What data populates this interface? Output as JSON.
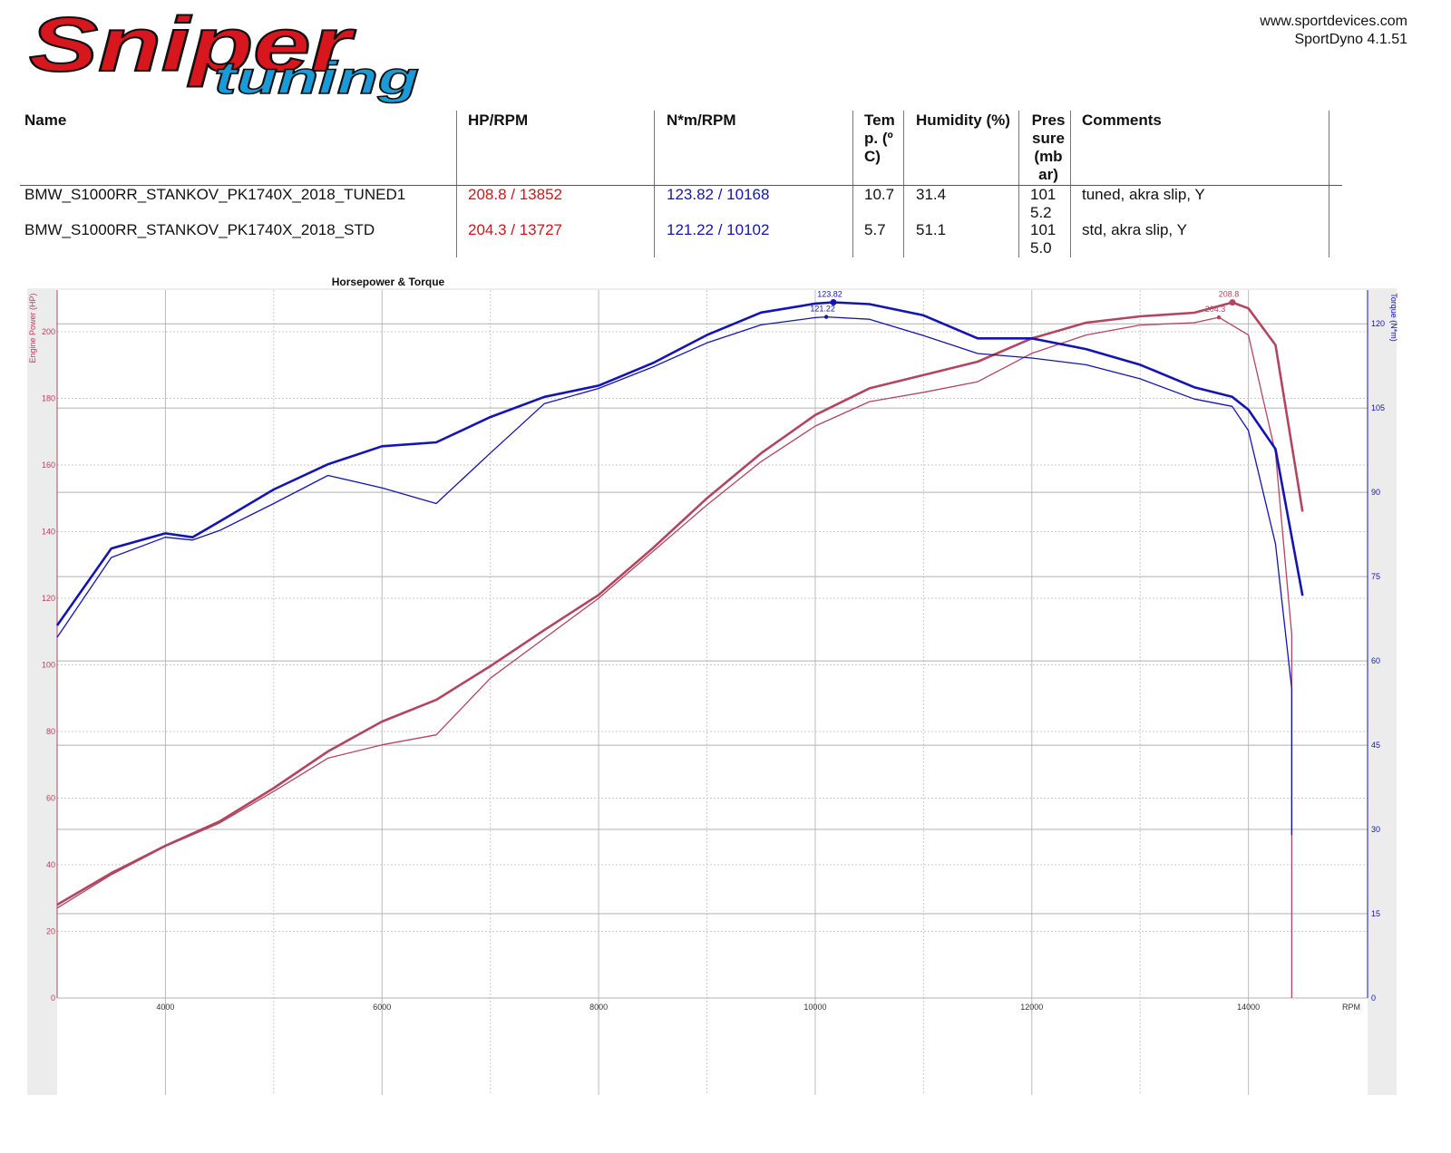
{
  "header": {
    "logo": {
      "brand": "Sniper",
      "sub": "tuning"
    },
    "site": "www.sportdevices.com",
    "software": "SportDyno 4.1.51"
  },
  "table": {
    "columns": [
      "Name",
      "HP/RPM",
      "N*m/RPM",
      "Temp. (ºC)",
      "Humidity (%)",
      "Pressure (mbar)",
      "Comments"
    ],
    "rows": [
      [
        "BMW_S1000RR_STANKOV_PK1740X_2018_TUNED1",
        "208.8 / 13852",
        "123.82 / 10168",
        "10.7",
        "31.4",
        "1015.2",
        "tuned, akra slip, Y"
      ],
      [
        "BMW_S1000RR_STANKOV_PK1740X_2018_STD",
        "204.3 / 13727",
        "121.22 / 10102",
        "5.7",
        "51.1",
        "1015.0",
        "std, akra slip, Y"
      ]
    ]
  },
  "chart_data": {
    "type": "line",
    "title": "Horsepower & Torque",
    "x_label": "RPM",
    "y_label": "Engine Power (HP)",
    "y2_label": "Torque (N*m)",
    "xlim": [
      3000,
      15100
    ],
    "xticks": [
      4000,
      6000,
      8000,
      10000,
      12000,
      14000
    ],
    "ylim": [
      0,
      212.5
    ],
    "yticks": [
      0,
      20,
      40,
      60,
      80,
      100,
      120,
      140,
      160,
      180,
      200
    ],
    "y2lim": [
      0,
      126
    ],
    "y2ticks": [
      0,
      15,
      30,
      45,
      60,
      75,
      90,
      105,
      120
    ],
    "grid": true,
    "series": [
      {
        "color": "#b24560",
        "x": [
          3000,
          3500,
          4000,
          4500,
          5000,
          5500,
          6000,
          6500,
          7000,
          7500,
          8000,
          8500,
          9000,
          9500,
          10000,
          10500,
          11000,
          11500,
          12000,
          12500,
          13000,
          13500,
          13852,
          14000,
          14250,
          14500
        ],
        "values": [
          28,
          37.5,
          45.7,
          53,
          63,
          74,
          83,
          89.5,
          99.6,
          110.5,
          121,
          135,
          150,
          163.5,
          175,
          183,
          187,
          191,
          198,
          202.7,
          204.6,
          205.7,
          208.8,
          207,
          196,
          146
        ]
      },
      {
        "color": "#b24560",
        "x": [
          3000,
          3500,
          4000,
          4500,
          5000,
          5500,
          6000,
          6500,
          7000,
          7500,
          8000,
          8500,
          9000,
          9500,
          10000,
          10500,
          11000,
          11500,
          12000,
          12500,
          13000,
          13500,
          13727,
          14000,
          14250,
          14400,
          14400
        ],
        "values": [
          27,
          37,
          45.5,
          52.5,
          62,
          72,
          76,
          79,
          96,
          108,
          120,
          134,
          148,
          161,
          171.7,
          179,
          181.8,
          185,
          193.5,
          199,
          202,
          202.7,
          204.3,
          199,
          163.5,
          109,
          0
        ]
      },
      {
        "color": "#1414b4",
        "axis": "y2",
        "x": [
          3000,
          3500,
          4000,
          4250,
          4500,
          5000,
          5500,
          6000,
          6500,
          7000,
          7500,
          8000,
          8500,
          9000,
          9500,
          10000,
          10168,
          10500,
          11000,
          11500,
          12000,
          12500,
          13000,
          13500,
          13850,
          14000,
          14250,
          14500
        ],
        "values": [
          66.3,
          80,
          82.7,
          82,
          84.8,
          90.5,
          95,
          98.2,
          98.9,
          103.4,
          107,
          109,
          113,
          118,
          122,
          123.6,
          123.82,
          123.5,
          121.5,
          117.4,
          117.4,
          115.5,
          112.7,
          108.7,
          107,
          104.7,
          97.7,
          71.6
        ]
      },
      {
        "color": "#1414b4",
        "axis": "y2",
        "x": [
          3000,
          3500,
          4000,
          4250,
          4500,
          5000,
          5500,
          6000,
          6500,
          7000,
          7500,
          8000,
          8500,
          9000,
          9500,
          10000,
          10102,
          10500,
          11000,
          11500,
          12000,
          12500,
          13000,
          13500,
          13850,
          14000,
          14250,
          14400,
          14400
        ],
        "values": [
          64.2,
          78.4,
          82,
          81.5,
          83.2,
          88,
          93,
          90.8,
          88,
          97,
          105.8,
          108.5,
          112.3,
          116.6,
          119.8,
          121.1,
          121.22,
          120.8,
          117.9,
          114.7,
          113.9,
          112.7,
          110.2,
          106.6,
          105.3,
          101,
          80.8,
          55,
          29
        ]
      }
    ],
    "annotations": [
      {
        "x": 10168,
        "value": 123.82,
        "axis": "y2",
        "color": "#1414b4"
      },
      {
        "x": 10102,
        "value": 121.22,
        "axis": "y2",
        "color": "#1414b4"
      },
      {
        "x": 13852,
        "value": 208.8,
        "color": "#b24560"
      },
      {
        "x": 13727,
        "value": 204.3,
        "color": "#b24560"
      }
    ]
  }
}
